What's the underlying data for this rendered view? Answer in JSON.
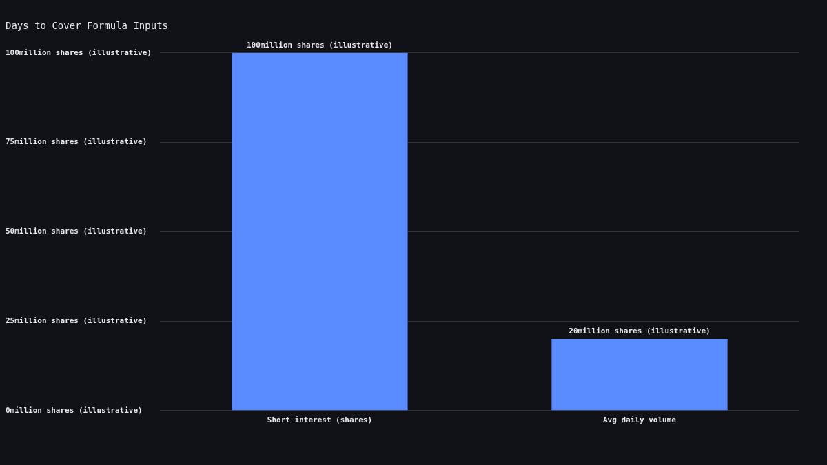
{
  "chart_data": {
    "type": "bar",
    "title": "Days to Cover Formula Inputs",
    "categories": [
      "Short interest (shares)",
      "Avg daily volume"
    ],
    "values": [
      100,
      20
    ],
    "color": "#5b8cff",
    "value_labels": [
      "100million shares (illustrative)",
      "20million shares (illustrative)"
    ],
    "ylim": [
      0,
      100
    ],
    "yticks": [
      {
        "value": 0,
        "label": "0million shares (illustrative)"
      },
      {
        "value": 25,
        "label": "25million shares (illustrative)"
      },
      {
        "value": 50,
        "label": "50million shares (illustrative)"
      },
      {
        "value": 75,
        "label": "75million shares (illustrative)"
      },
      {
        "value": 100,
        "label": "100million shares (illustrative)"
      }
    ],
    "grid": "y"
  }
}
